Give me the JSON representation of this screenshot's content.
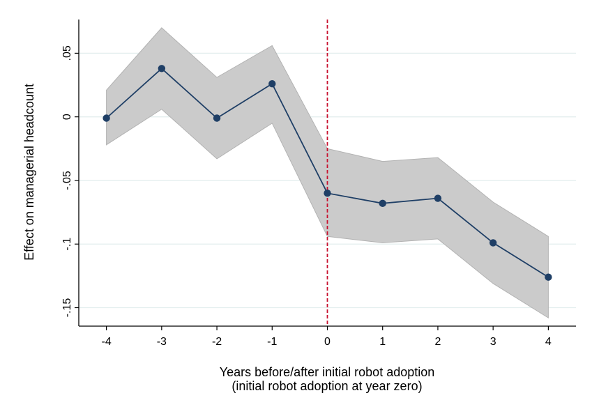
{
  "chart_data": {
    "type": "line",
    "title": "",
    "xlabel": "Years before/after initial robot adoption",
    "xlabel_line2": "(initial robot adoption at year zero)",
    "ylabel": "Effect on managerial headcount",
    "x": [
      -4,
      -3,
      -2,
      -1,
      0,
      1,
      2,
      3,
      4
    ],
    "series": [
      {
        "values": [
          -0.001,
          0.038,
          -0.001,
          0.026,
          -0.06,
          -0.068,
          -0.064,
          -0.099,
          -0.126
        ],
        "ci_lower": [
          -0.022,
          0.006,
          -0.033,
          -0.005,
          -0.094,
          -0.099,
          -0.096,
          -0.131,
          -0.158
        ],
        "ci_upper": [
          0.021,
          0.07,
          0.031,
          0.056,
          -0.025,
          -0.035,
          -0.032,
          -0.067,
          -0.094
        ]
      }
    ],
    "xticks": [
      "-4",
      "-3",
      "-2",
      "-1",
      "0",
      "1",
      "2",
      "3",
      "4"
    ],
    "yticks": [
      {
        "value": 0.05,
        "label": ".05"
      },
      {
        "value": 0,
        "label": "0"
      },
      {
        "value": -0.05,
        "label": "-.05"
      },
      {
        "value": -0.1,
        "label": "-.1"
      },
      {
        "value": -0.15,
        "label": "-.15"
      }
    ],
    "xlim": [
      -4.5,
      4.5
    ],
    "ylim": [
      -0.1645,
      0.0765
    ],
    "reference_line_x": 0,
    "grid": "horizontal",
    "colors": {
      "line": "#1f3f66",
      "marker": "#1f3f66",
      "ci_band": "#cbcbcb",
      "ci_edge": "#b2b2b2",
      "reference_line": "#c8102e",
      "grid": "#e3eeee"
    }
  }
}
